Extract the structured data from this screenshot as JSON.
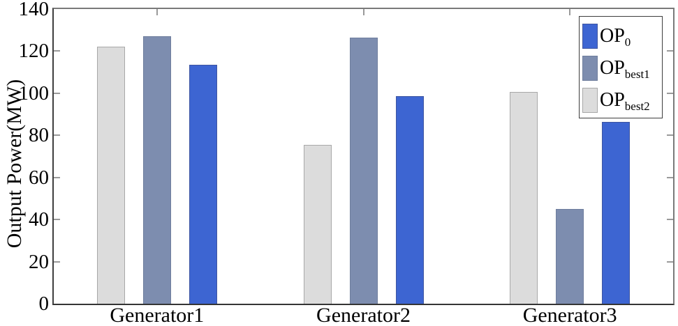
{
  "chart_data": {
    "type": "bar",
    "title": "",
    "xlabel": "",
    "ylabel": "Output Power(MW)",
    "categories": [
      "Generator1",
      "Generator2",
      "Generator3"
    ],
    "series": [
      {
        "name": "OP",
        "subscript": "0",
        "legend_label": "OP0",
        "color": "#3D65D2",
        "edge_color": "#3E55A0",
        "values": [
          113.5,
          98.5,
          86.5
        ]
      },
      {
        "name": "OP",
        "subscript": "best1",
        "legend_label": "OPbest1",
        "color": "#7D8DAF",
        "edge_color": "#6F7E9D",
        "values": [
          127,
          126.5,
          45
        ]
      },
      {
        "name": "OP",
        "subscript": "best2",
        "legend_label": "OPbest2",
        "color": "#DCDCDC",
        "edge_color": "#A8A8A8",
        "values": [
          122,
          75.5,
          100.5
        ]
      }
    ],
    "bar_display_order_left_to_right": [
      "OPbest2",
      "OPbest1",
      "OP0"
    ],
    "ylim": [
      0,
      140
    ],
    "yticks": [
      0,
      20,
      40,
      60,
      80,
      100,
      120,
      140
    ],
    "grid": false,
    "legend_position": "top-right",
    "axis_color": "#3f3f3f",
    "tick_color": "#9a9a9a",
    "text_color": "#000000",
    "background": "#ffffff"
  }
}
